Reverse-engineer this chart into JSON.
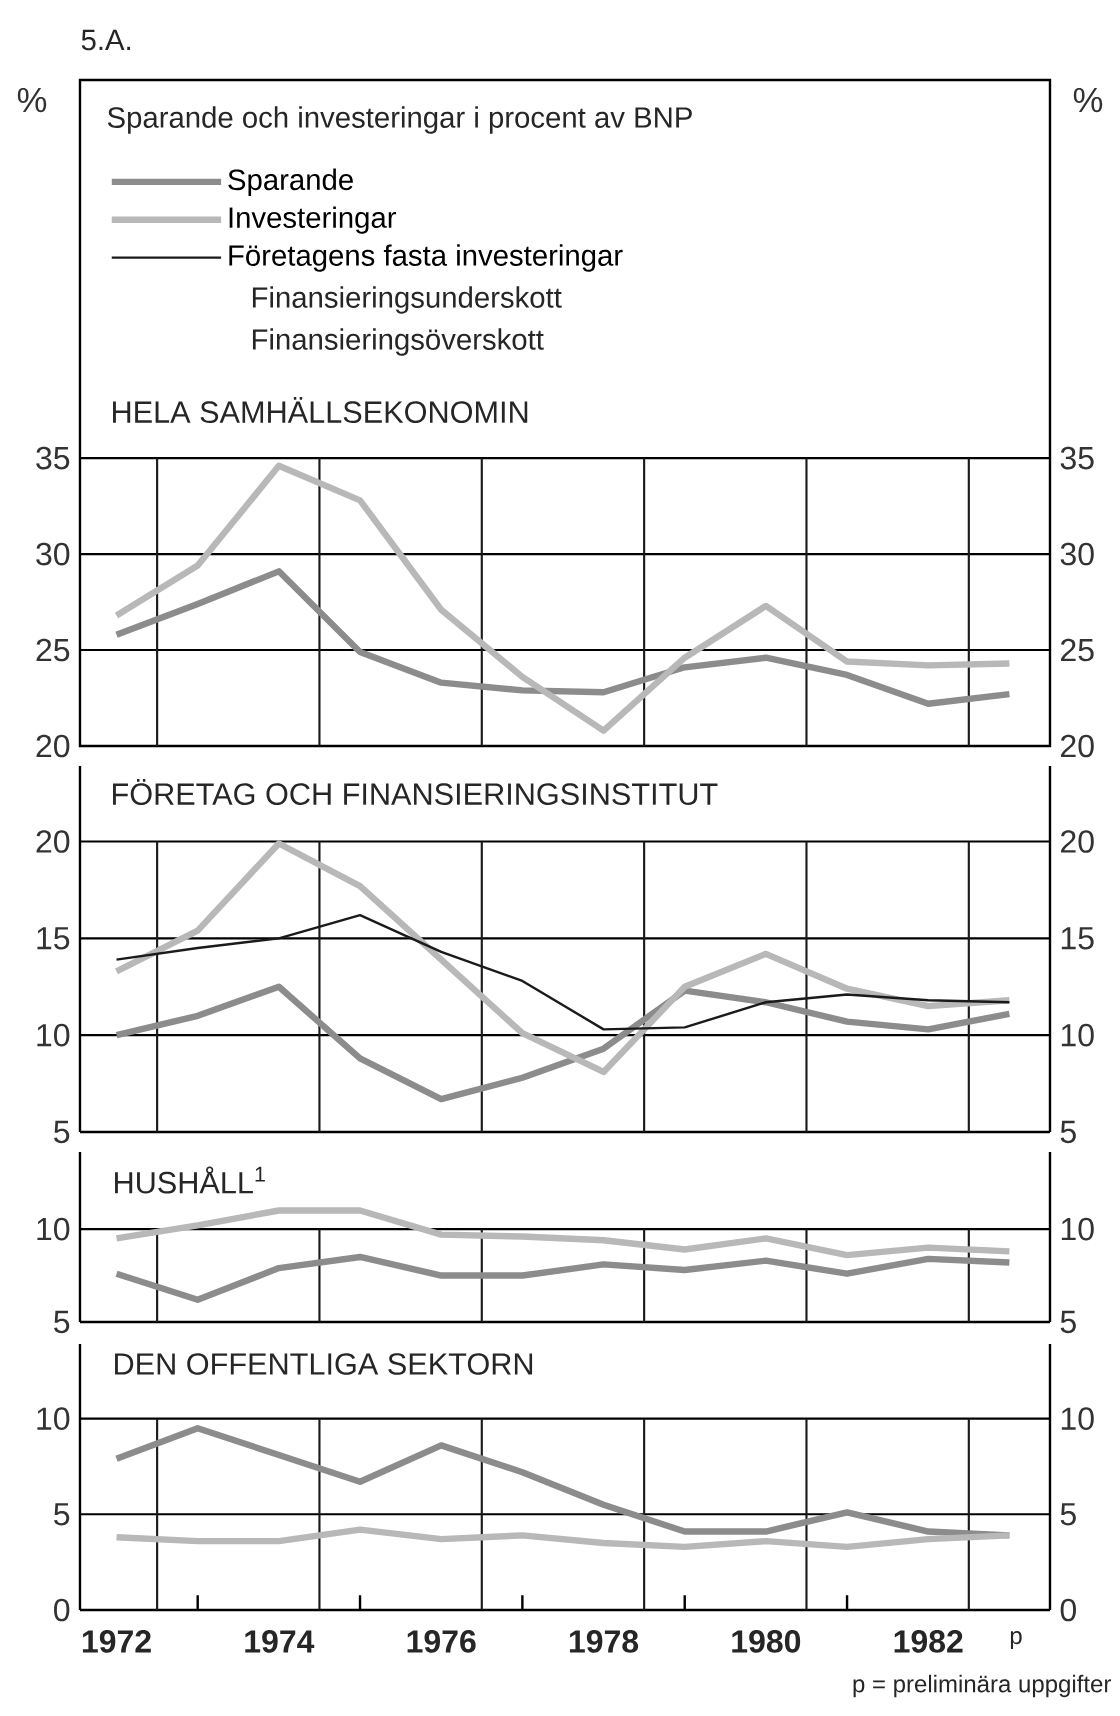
{
  "chart_data": [
    {
      "type": "line",
      "title": "Sparande och investeringar i procent av BNP",
      "subtitle": "HELA SAMHÄLLSEKONOMIN",
      "ylabel": "%",
      "y2label": "%",
      "annotations": [
        "5.A.",
        "Finansieringsunderskott",
        "Finansieringsöverskott"
      ],
      "x": [
        1972,
        1973,
        1974,
        1975,
        1976,
        1977,
        1978,
        1979,
        1980,
        1981,
        1982,
        1983
      ],
      "series": [
        {
          "name": "Sparande",
          "color": "#8c8c8c",
          "values": [
            25.8,
            27.4,
            29.1,
            24.9,
            23.3,
            22.9,
            22.8,
            24.1,
            24.6,
            23.7,
            22.2,
            22.7
          ]
        },
        {
          "name": "Investeringar",
          "color": "#b8b8b8",
          "values": [
            26.8,
            29.4,
            34.6,
            32.8,
            27.1,
            23.6,
            20.8,
            24.6,
            27.3,
            24.4,
            24.2,
            24.3
          ]
        },
        {
          "name": "Företagens fasta investeringar",
          "color": "#1a1a1a",
          "values": [
            null,
            null,
            null,
            null,
            null,
            null,
            null,
            null,
            null,
            null,
            null,
            null
          ]
        }
      ],
      "xlim": [
        1971.55,
        1983.5
      ],
      "ylim": [
        20,
        54.7
      ],
      "yticks": [
        20,
        25,
        30,
        35
      ],
      "y2lim": [
        20,
        54.7
      ],
      "y2ticks": [
        20,
        25,
        30,
        35
      ],
      "ref_lines": [
        {
          "axis": "x",
          "value": 1972.5,
          "color": "#1a1a1a"
        },
        {
          "axis": "x",
          "value": 1974.5,
          "color": "#1a1a1a"
        },
        {
          "axis": "x",
          "value": 1976.5,
          "color": "#1a1a1a"
        },
        {
          "axis": "x",
          "value": 1978.5,
          "color": "#1a1a1a"
        },
        {
          "axis": "x",
          "value": 1980.5,
          "color": "#1a1a1a"
        },
        {
          "axis": "x",
          "value": 1982.5,
          "color": "#1a1a1a"
        }
      ],
      "grid": "y",
      "legend": "top left",
      "tick_labels": "y"
    },
    {
      "type": "line",
      "subtitle": "FÖRETAG OCH FINANSIERINGSINSTITUT",
      "x": [
        1972,
        1973,
        1974,
        1975,
        1976,
        1977,
        1978,
        1979,
        1980,
        1981,
        1982,
        1983
      ],
      "series": [
        {
          "color": "#8c8c8c",
          "values": [
            10.0,
            11.0,
            12.5,
            8.8,
            6.7,
            7.8,
            9.3,
            12.3,
            11.7,
            10.7,
            10.3,
            11.1
          ]
        },
        {
          "color": "#b8b8b8",
          "values": [
            13.3,
            15.4,
            19.9,
            17.7,
            13.9,
            10.1,
            8.1,
            12.5,
            14.2,
            12.4,
            11.5,
            11.8
          ]
        },
        {
          "color": "#1a1a1a",
          "values": [
            13.9,
            14.5,
            15.0,
            16.2,
            14.3,
            12.8,
            10.3,
            10.4,
            11.7,
            12.1,
            11.8,
            11.7
          ]
        }
      ],
      "xlim": [
        1971.55,
        1983.5
      ],
      "ylim": [
        5,
        23.9
      ],
      "yticks": [
        5,
        10,
        15,
        20
      ],
      "y2lim": [
        5,
        23.9
      ],
      "y2ticks": [
        5,
        10,
        15,
        20
      ],
      "ref_lines": [
        {
          "axis": "x",
          "value": 1972.5,
          "color": "#1a1a1a"
        },
        {
          "axis": "x",
          "value": 1974.5,
          "color": "#1a1a1a"
        },
        {
          "axis": "x",
          "value": 1976.5,
          "color": "#1a1a1a"
        },
        {
          "axis": "x",
          "value": 1978.5,
          "color": "#1a1a1a"
        },
        {
          "axis": "x",
          "value": 1980.5,
          "color": "#1a1a1a"
        },
        {
          "axis": "x",
          "value": 1982.5,
          "color": "#1a1a1a"
        }
      ],
      "grid": "y",
      "tick_labels": "y"
    },
    {
      "type": "line",
      "subtitle": "HUSHÅLL$^{1}$",
      "x": [
        1972,
        1973,
        1974,
        1975,
        1976,
        1977,
        1978,
        1979,
        1980,
        1981,
        1982,
        1983
      ],
      "series": [
        {
          "color": "#8c8c8c",
          "values": [
            7.6,
            6.2,
            7.9,
            8.5,
            7.5,
            7.5,
            8.1,
            7.8,
            8.3,
            7.6,
            8.4,
            8.2
          ]
        },
        {
          "color": "#b8b8b8",
          "values": [
            9.5,
            10.2,
            11.0,
            11.0,
            9.7,
            9.6,
            9.4,
            8.9,
            9.5,
            8.6,
            9.0,
            8.8
          ]
        }
      ],
      "xlim": [
        1971.55,
        1983.5
      ],
      "ylim": [
        5,
        14.15
      ],
      "yticks": [
        5,
        10
      ],
      "y2lim": [
        5,
        14.15
      ],
      "y2ticks": [
        5,
        10
      ],
      "ref_lines": [
        {
          "axis": "x",
          "value": 1972.5,
          "color": "#1a1a1a"
        },
        {
          "axis": "x",
          "value": 1974.5,
          "color": "#1a1a1a"
        },
        {
          "axis": "x",
          "value": 1976.5,
          "color": "#1a1a1a"
        },
        {
          "axis": "x",
          "value": 1978.5,
          "color": "#1a1a1a"
        },
        {
          "axis": "x",
          "value": 1980.5,
          "color": "#1a1a1a"
        },
        {
          "axis": "x",
          "value": 1982.5,
          "color": "#1a1a1a"
        }
      ],
      "grid": "y",
      "tick_labels": "y"
    },
    {
      "type": "line",
      "subtitle": "DEN OFFENTLIGA SEKTORN",
      "annotations": [
        "p",
        "p = preliminära uppgifter"
      ],
      "x": [
        1972,
        1973,
        1974,
        1975,
        1976,
        1977,
        1978,
        1979,
        1980,
        1981,
        1982,
        1983
      ],
      "series": [
        {
          "color": "#8c8c8c",
          "values": [
            7.9,
            9.5,
            8.1,
            6.7,
            8.6,
            7.2,
            5.5,
            4.1,
            4.1,
            5.1,
            4.1,
            3.9
          ]
        },
        {
          "color": "#b8b8b8",
          "values": [
            3.8,
            3.6,
            3.6,
            4.2,
            3.7,
            3.9,
            3.5,
            3.3,
            3.6,
            3.3,
            3.7,
            3.9
          ]
        }
      ],
      "xlim": [
        1971.55,
        1983.5
      ],
      "ylim": [
        0,
        13.9
      ],
      "yticks": [
        0,
        5,
        10
      ],
      "y2lim": [
        0,
        13.9
      ],
      "y2ticks": [
        0,
        5,
        10
      ],
      "xticks": [
        {
          "value": 1972,
          "label": "1972"
        },
        {
          "value": 1973,
          "label": null
        },
        {
          "value": 1974,
          "label": "1974"
        },
        {
          "value": 1975,
          "label": null
        },
        {
          "value": 1976,
          "label": "1976"
        },
        {
          "value": 1977,
          "label": null
        },
        {
          "value": 1978,
          "label": "1978"
        },
        {
          "value": 1979,
          "label": null
        },
        {
          "value": 1980,
          "label": "1980"
        },
        {
          "value": 1981,
          "label": null
        },
        {
          "value": 1982,
          "label": "1982"
        }
      ],
      "ref_lines": [
        {
          "axis": "x",
          "value": 1972.5,
          "color": "#1a1a1a"
        },
        {
          "axis": "x",
          "value": 1974.5,
          "color": "#1a1a1a"
        },
        {
          "axis": "x",
          "value": 1976.5,
          "color": "#1a1a1a"
        },
        {
          "axis": "x",
          "value": 1978.5,
          "color": "#1a1a1a"
        },
        {
          "axis": "x",
          "value": 1980.5,
          "color": "#1a1a1a"
        },
        {
          "axis": "x",
          "value": 1982.5,
          "color": "#1a1a1a"
        }
      ],
      "grid": "y"
    }
  ]
}
